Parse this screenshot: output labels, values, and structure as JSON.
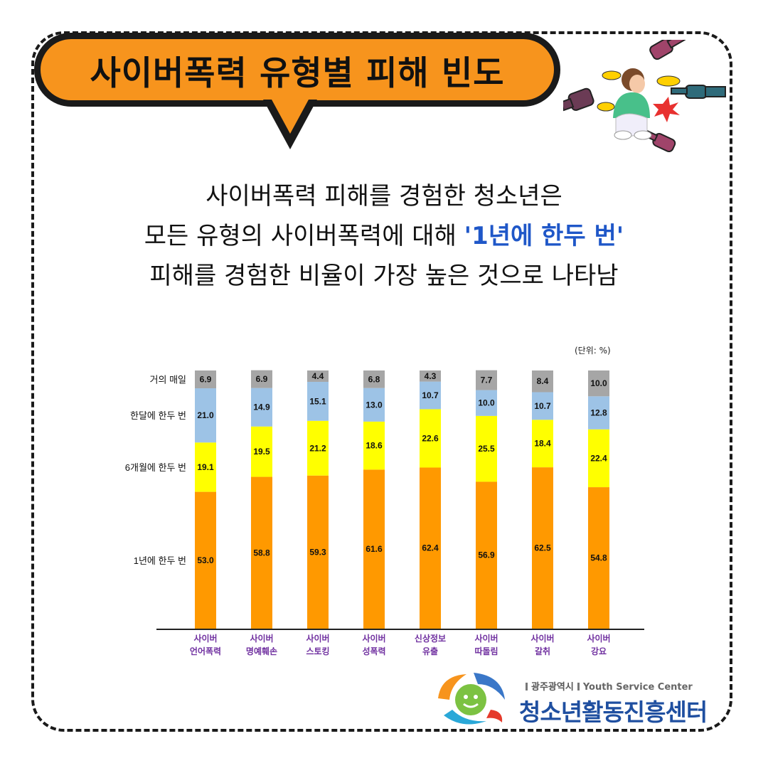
{
  "title": "사이버폭력 유형별 피해 빈도",
  "headline": {
    "line1": "사이버폭력 피해를 경험한 청소년은",
    "line2_pre": "모든 유형의 사이버폭력에 대해 ",
    "line2_highlight": "'1년에 한두 번'",
    "line3": "피해를 경험한 비율이 가장 높은 것으로 나타남"
  },
  "unit_label": "(단위: %)",
  "logo": {
    "city": "광주광역시",
    "english": "Youth Service Center",
    "name": "청소년활동진흥센터"
  },
  "colors": {
    "accent": "#f7941d",
    "highlight_text": "#1f57c8",
    "category_label": "#7030a0"
  },
  "chart_data": {
    "type": "bar",
    "stacked": true,
    "unit": "%",
    "categories": [
      [
        "사이버",
        "언어폭력"
      ],
      [
        "사이버",
        "명예훼손"
      ],
      [
        "사이버",
        "스토킹"
      ],
      [
        "사이버",
        "성폭력"
      ],
      [
        "신상정보",
        "유출"
      ],
      [
        "사이버",
        "따돌림"
      ],
      [
        "사이버",
        "갈취"
      ],
      [
        "사이버",
        "강요"
      ]
    ],
    "series": [
      {
        "name": "1년에 한두 번",
        "color": "#ff9900",
        "values": [
          53.0,
          58.8,
          59.3,
          61.6,
          62.4,
          56.9,
          62.5,
          54.8
        ]
      },
      {
        "name": "6개월에 한두 번",
        "color": "#ffff00",
        "values": [
          19.1,
          19.5,
          21.2,
          18.6,
          22.6,
          25.5,
          18.4,
          22.4
        ]
      },
      {
        "name": "한달에 한두 번",
        "color": "#9dc3e6",
        "values": [
          21.0,
          14.9,
          15.1,
          13.0,
          10.7,
          10.0,
          10.7,
          12.8
        ]
      },
      {
        "name": "거의 매일",
        "color": "#a6a6a6",
        "values": [
          6.9,
          6.9,
          4.4,
          6.8,
          4.3,
          7.7,
          8.4,
          10.0
        ]
      }
    ],
    "ylim": [
      0,
      100
    ],
    "legend_position": "left",
    "grid": false
  }
}
